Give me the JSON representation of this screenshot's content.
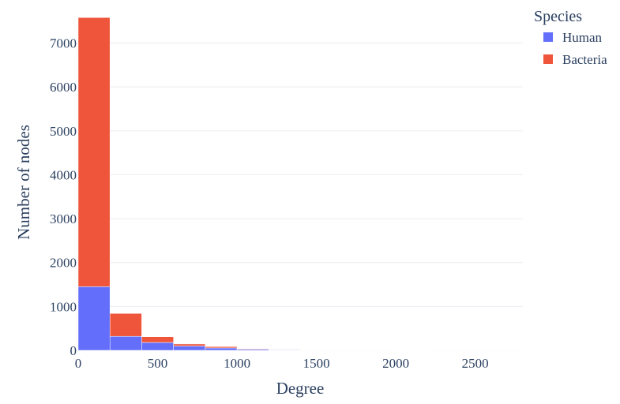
{
  "chart_data": {
    "type": "bar",
    "stacked": true,
    "xlabel": "Degree",
    "ylabel": "Number of nodes",
    "bin_edges": [
      0,
      200,
      400,
      600,
      800,
      1000,
      1200,
      1400,
      1600,
      1800,
      2000,
      2200,
      2400,
      2600,
      2800
    ],
    "series": [
      {
        "name": "Human",
        "color": "#636efa",
        "values": [
          1450,
          320,
          180,
          100,
          55,
          25,
          12,
          8,
          5,
          4,
          3,
          2,
          2,
          1
        ]
      },
      {
        "name": "Bacteria",
        "color": "#ef553b",
        "values": [
          6130,
          520,
          130,
          45,
          30,
          12,
          8,
          5,
          3,
          2,
          2,
          1,
          1,
          0
        ]
      }
    ],
    "xlim": [
      0,
      2800
    ],
    "ylim": [
      0,
      7800
    ],
    "x_ticks": [
      0,
      500,
      1000,
      1500,
      2000,
      2500
    ],
    "y_ticks": [
      0,
      1000,
      2000,
      3000,
      4000,
      5000,
      6000,
      7000
    ],
    "grid": true,
    "legend": {
      "title": "Species",
      "placement": "top-right"
    }
  }
}
